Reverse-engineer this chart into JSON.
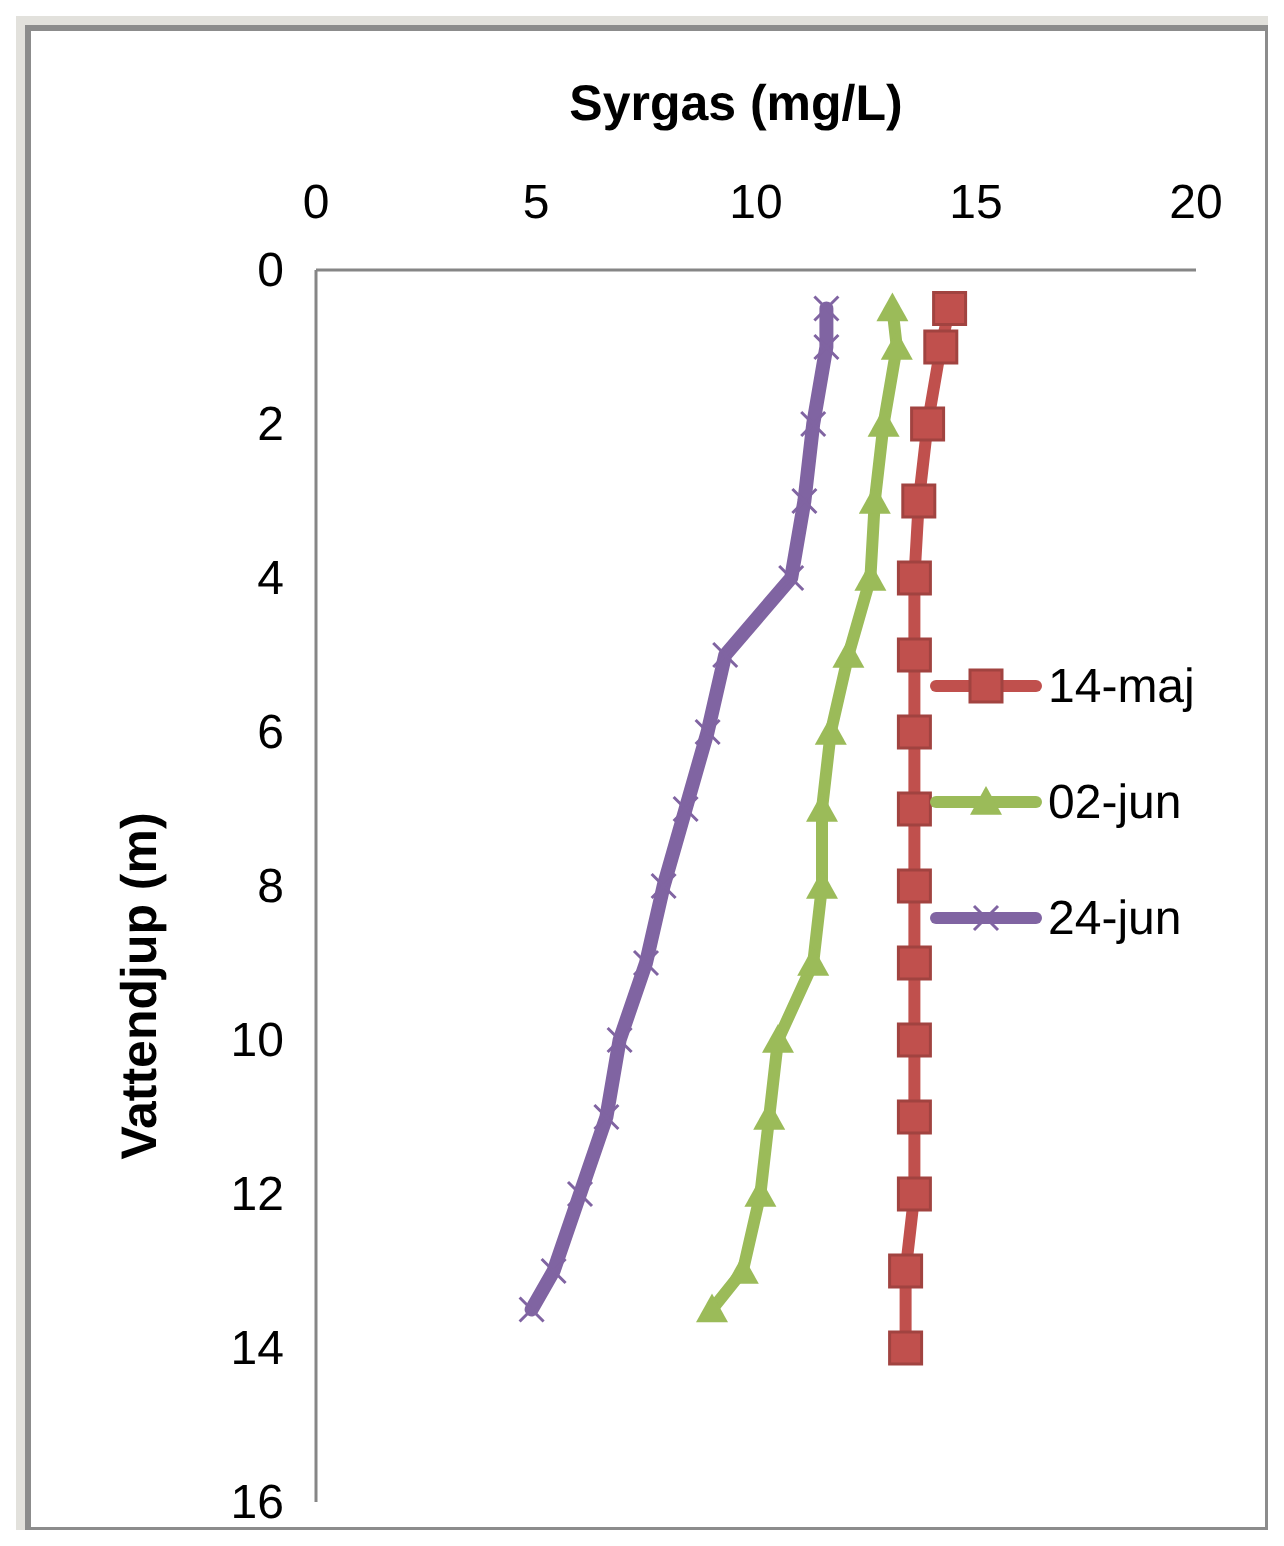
{
  "chart_data": {
    "type": "line",
    "xlabel": "Syrgas (mg/L)",
    "ylabel": "Vattendjup (m)",
    "xlim": [
      0,
      20
    ],
    "xticks": [
      0,
      5,
      10,
      15,
      20
    ],
    "ylim": [
      16,
      0
    ],
    "yticks": [
      0,
      2,
      4,
      6,
      8,
      10,
      12,
      14,
      16
    ],
    "grid": false,
    "legend": "right",
    "series": [
      {
        "name": "14-maj",
        "color": "#c0504d",
        "marker": "square",
        "x": [
          14.4,
          14.2,
          13.9,
          13.7,
          13.6,
          13.6,
          13.6,
          13.6,
          13.6,
          13.6,
          13.6,
          13.6,
          13.6,
          13.4,
          13.4
        ],
        "values": [
          0.5,
          1,
          2,
          3,
          4,
          5,
          6,
          7,
          8,
          9,
          10,
          11,
          12,
          13,
          14
        ]
      },
      {
        "name": "02-jun",
        "color": "#9bbb59",
        "marker": "triangle",
        "x": [
          13.1,
          13.2,
          12.9,
          12.7,
          12.6,
          12.1,
          11.7,
          11.5,
          11.5,
          11.3,
          10.5,
          10.3,
          10.1,
          9.7,
          9
        ],
        "values": [
          0.5,
          1,
          2,
          3,
          4,
          5,
          6,
          7,
          8,
          9,
          10,
          11,
          12,
          13,
          13.5
        ]
      },
      {
        "name": "24-jun",
        "color": "#8064a2",
        "marker": "cross",
        "x": [
          11.6,
          11.6,
          11.3,
          11.1,
          10.8,
          9.3,
          8.9,
          8.4,
          7.9,
          7.5,
          6.9,
          6.6,
          6,
          5.4,
          4.9
        ],
        "values": [
          0.5,
          1,
          2,
          3,
          4,
          5,
          6,
          7,
          8,
          9,
          10,
          11,
          12,
          13,
          13.5
        ]
      }
    ]
  }
}
